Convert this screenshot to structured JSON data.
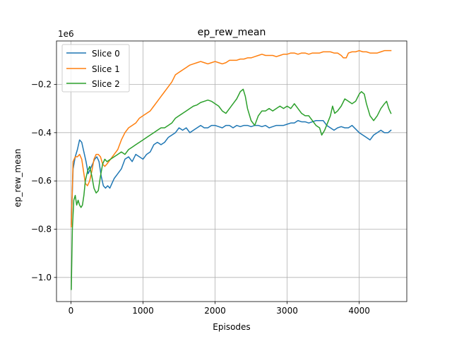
{
  "chart_data": {
    "type": "line",
    "title": "ep_rew_mean",
    "xlabel": "Episodes",
    "ylabel": "ep_rew_mean",
    "y_offset_label": "1e6",
    "xlim": [
      -200,
      4660
    ],
    "ylim": [
      -1.1,
      -0.02
    ],
    "x_ticks": [
      0,
      1000,
      2000,
      3000,
      4000
    ],
    "x_tick_labels": [
      "0",
      "1000",
      "2000",
      "3000",
      "4000"
    ],
    "y_ticks": [
      -1.0,
      -0.8,
      -0.6,
      -0.4,
      -0.2
    ],
    "y_tick_labels": [
      "−1.0",
      "−0.8",
      "−0.6",
      "−0.4",
      "−0.2"
    ],
    "grid": true,
    "legend_position": "upper-left",
    "series": [
      {
        "name": "Slice 0",
        "color": "#1f77b4",
        "points": [
          [
            5,
            -0.78
          ],
          [
            30,
            -0.55
          ],
          [
            60,
            -0.5
          ],
          [
            90,
            -0.47
          ],
          [
            120,
            -0.43
          ],
          [
            150,
            -0.44
          ],
          [
            180,
            -0.48
          ],
          [
            210,
            -0.52
          ],
          [
            240,
            -0.57
          ],
          [
            270,
            -0.55
          ],
          [
            300,
            -0.53
          ],
          [
            330,
            -0.51
          ],
          [
            360,
            -0.5
          ],
          [
            390,
            -0.52
          ],
          [
            420,
            -0.58
          ],
          [
            450,
            -0.62
          ],
          [
            480,
            -0.63
          ],
          [
            510,
            -0.62
          ],
          [
            540,
            -0.63
          ],
          [
            570,
            -0.61
          ],
          [
            600,
            -0.59
          ],
          [
            650,
            -0.57
          ],
          [
            700,
            -0.55
          ],
          [
            750,
            -0.51
          ],
          [
            800,
            -0.5
          ],
          [
            850,
            -0.52
          ],
          [
            900,
            -0.49
          ],
          [
            950,
            -0.5
          ],
          [
            1000,
            -0.51
          ],
          [
            1050,
            -0.49
          ],
          [
            1100,
            -0.48
          ],
          [
            1150,
            -0.45
          ],
          [
            1200,
            -0.44
          ],
          [
            1250,
            -0.45
          ],
          [
            1300,
            -0.44
          ],
          [
            1350,
            -0.42
          ],
          [
            1400,
            -0.41
          ],
          [
            1450,
            -0.4
          ],
          [
            1500,
            -0.38
          ],
          [
            1550,
            -0.39
          ],
          [
            1600,
            -0.38
          ],
          [
            1650,
            -0.4
          ],
          [
            1700,
            -0.39
          ],
          [
            1750,
            -0.38
          ],
          [
            1800,
            -0.37
          ],
          [
            1850,
            -0.38
          ],
          [
            1900,
            -0.38
          ],
          [
            1950,
            -0.37
          ],
          [
            2000,
            -0.37
          ],
          [
            2050,
            -0.375
          ],
          [
            2100,
            -0.38
          ],
          [
            2150,
            -0.37
          ],
          [
            2200,
            -0.37
          ],
          [
            2250,
            -0.38
          ],
          [
            2300,
            -0.37
          ],
          [
            2350,
            -0.375
          ],
          [
            2400,
            -0.37
          ],
          [
            2450,
            -0.37
          ],
          [
            2500,
            -0.375
          ],
          [
            2550,
            -0.37
          ],
          [
            2600,
            -0.37
          ],
          [
            2650,
            -0.375
          ],
          [
            2700,
            -0.37
          ],
          [
            2750,
            -0.38
          ],
          [
            2800,
            -0.375
          ],
          [
            2850,
            -0.37
          ],
          [
            2900,
            -0.37
          ],
          [
            2950,
            -0.37
          ],
          [
            3000,
            -0.365
          ],
          [
            3050,
            -0.36
          ],
          [
            3100,
            -0.36
          ],
          [
            3150,
            -0.35
          ],
          [
            3200,
            -0.355
          ],
          [
            3250,
            -0.355
          ],
          [
            3300,
            -0.36
          ],
          [
            3350,
            -0.355
          ],
          [
            3400,
            -0.35
          ],
          [
            3450,
            -0.35
          ],
          [
            3500,
            -0.35
          ],
          [
            3550,
            -0.37
          ],
          [
            3600,
            -0.38
          ],
          [
            3650,
            -0.39
          ],
          [
            3700,
            -0.38
          ],
          [
            3750,
            -0.375
          ],
          [
            3800,
            -0.38
          ],
          [
            3850,
            -0.38
          ],
          [
            3900,
            -0.37
          ],
          [
            3950,
            -0.385
          ],
          [
            4000,
            -0.4
          ],
          [
            4050,
            -0.41
          ],
          [
            4100,
            -0.42
          ],
          [
            4150,
            -0.43
          ],
          [
            4200,
            -0.41
          ],
          [
            4250,
            -0.4
          ],
          [
            4300,
            -0.39
          ],
          [
            4350,
            -0.4
          ],
          [
            4400,
            -0.4
          ],
          [
            4440,
            -0.39
          ]
        ]
      },
      {
        "name": "Slice 1",
        "color": "#ff7f0e",
        "points": [
          [
            5,
            -0.79
          ],
          [
            30,
            -0.52
          ],
          [
            60,
            -0.5
          ],
          [
            90,
            -0.5
          ],
          [
            120,
            -0.49
          ],
          [
            150,
            -0.51
          ],
          [
            180,
            -0.57
          ],
          [
            200,
            -0.61
          ],
          [
            230,
            -0.62
          ],
          [
            260,
            -0.6
          ],
          [
            290,
            -0.56
          ],
          [
            320,
            -0.51
          ],
          [
            350,
            -0.49
          ],
          [
            380,
            -0.49
          ],
          [
            410,
            -0.5
          ],
          [
            440,
            -0.53
          ],
          [
            470,
            -0.54
          ],
          [
            500,
            -0.53
          ],
          [
            550,
            -0.51
          ],
          [
            600,
            -0.49
          ],
          [
            650,
            -0.47
          ],
          [
            700,
            -0.43
          ],
          [
            750,
            -0.4
          ],
          [
            800,
            -0.38
          ],
          [
            850,
            -0.37
          ],
          [
            900,
            -0.36
          ],
          [
            950,
            -0.34
          ],
          [
            1000,
            -0.33
          ],
          [
            1050,
            -0.32
          ],
          [
            1100,
            -0.31
          ],
          [
            1150,
            -0.29
          ],
          [
            1200,
            -0.27
          ],
          [
            1250,
            -0.25
          ],
          [
            1300,
            -0.23
          ],
          [
            1350,
            -0.21
          ],
          [
            1400,
            -0.19
          ],
          [
            1450,
            -0.16
          ],
          [
            1500,
            -0.15
          ],
          [
            1550,
            -0.14
          ],
          [
            1600,
            -0.13
          ],
          [
            1650,
            -0.12
          ],
          [
            1700,
            -0.115
          ],
          [
            1750,
            -0.11
          ],
          [
            1800,
            -0.105
          ],
          [
            1850,
            -0.11
          ],
          [
            1900,
            -0.115
          ],
          [
            1950,
            -0.11
          ],
          [
            2000,
            -0.105
          ],
          [
            2050,
            -0.11
          ],
          [
            2100,
            -0.115
          ],
          [
            2150,
            -0.11
          ],
          [
            2200,
            -0.1
          ],
          [
            2250,
            -0.1
          ],
          [
            2300,
            -0.1
          ],
          [
            2350,
            -0.095
          ],
          [
            2400,
            -0.095
          ],
          [
            2450,
            -0.09
          ],
          [
            2500,
            -0.09
          ],
          [
            2550,
            -0.085
          ],
          [
            2600,
            -0.08
          ],
          [
            2650,
            -0.075
          ],
          [
            2700,
            -0.08
          ],
          [
            2750,
            -0.08
          ],
          [
            2800,
            -0.08
          ],
          [
            2850,
            -0.085
          ],
          [
            2900,
            -0.08
          ],
          [
            2950,
            -0.075
          ],
          [
            3000,
            -0.075
          ],
          [
            3050,
            -0.07
          ],
          [
            3100,
            -0.07
          ],
          [
            3150,
            -0.075
          ],
          [
            3200,
            -0.07
          ],
          [
            3250,
            -0.07
          ],
          [
            3300,
            -0.075
          ],
          [
            3350,
            -0.07
          ],
          [
            3400,
            -0.07
          ],
          [
            3450,
            -0.07
          ],
          [
            3500,
            -0.065
          ],
          [
            3550,
            -0.065
          ],
          [
            3600,
            -0.065
          ],
          [
            3650,
            -0.07
          ],
          [
            3700,
            -0.07
          ],
          [
            3750,
            -0.08
          ],
          [
            3780,
            -0.09
          ],
          [
            3820,
            -0.09
          ],
          [
            3850,
            -0.07
          ],
          [
            3900,
            -0.065
          ],
          [
            3950,
            -0.065
          ],
          [
            4000,
            -0.06
          ],
          [
            4050,
            -0.065
          ],
          [
            4100,
            -0.065
          ],
          [
            4150,
            -0.07
          ],
          [
            4200,
            -0.07
          ],
          [
            4250,
            -0.07
          ],
          [
            4300,
            -0.065
          ],
          [
            4350,
            -0.06
          ],
          [
            4400,
            -0.06
          ],
          [
            4440,
            -0.06
          ]
        ]
      },
      {
        "name": "Slice 2",
        "color": "#2ca02c",
        "points": [
          [
            5,
            -1.05
          ],
          [
            20,
            -0.8
          ],
          [
            40,
            -0.68
          ],
          [
            60,
            -0.66
          ],
          [
            80,
            -0.7
          ],
          [
            100,
            -0.68
          ],
          [
            120,
            -0.7
          ],
          [
            140,
            -0.71
          ],
          [
            160,
            -0.7
          ],
          [
            180,
            -0.66
          ],
          [
            200,
            -0.6
          ],
          [
            230,
            -0.56
          ],
          [
            260,
            -0.54
          ],
          [
            290,
            -0.58
          ],
          [
            320,
            -0.63
          ],
          [
            350,
            -0.65
          ],
          [
            380,
            -0.64
          ],
          [
            410,
            -0.58
          ],
          [
            440,
            -0.53
          ],
          [
            470,
            -0.51
          ],
          [
            500,
            -0.52
          ],
          [
            550,
            -0.51
          ],
          [
            600,
            -0.5
          ],
          [
            650,
            -0.49
          ],
          [
            700,
            -0.48
          ],
          [
            750,
            -0.49
          ],
          [
            800,
            -0.47
          ],
          [
            850,
            -0.46
          ],
          [
            900,
            -0.45
          ],
          [
            950,
            -0.44
          ],
          [
            1000,
            -0.43
          ],
          [
            1050,
            -0.42
          ],
          [
            1100,
            -0.41
          ],
          [
            1150,
            -0.4
          ],
          [
            1200,
            -0.39
          ],
          [
            1250,
            -0.38
          ],
          [
            1300,
            -0.38
          ],
          [
            1350,
            -0.37
          ],
          [
            1400,
            -0.36
          ],
          [
            1450,
            -0.34
          ],
          [
            1500,
            -0.33
          ],
          [
            1550,
            -0.32
          ],
          [
            1600,
            -0.31
          ],
          [
            1650,
            -0.3
          ],
          [
            1700,
            -0.29
          ],
          [
            1750,
            -0.285
          ],
          [
            1800,
            -0.275
          ],
          [
            1850,
            -0.27
          ],
          [
            1900,
            -0.265
          ],
          [
            1950,
            -0.27
          ],
          [
            2000,
            -0.28
          ],
          [
            2050,
            -0.29
          ],
          [
            2100,
            -0.31
          ],
          [
            2150,
            -0.32
          ],
          [
            2200,
            -0.3
          ],
          [
            2250,
            -0.28
          ],
          [
            2300,
            -0.26
          ],
          [
            2350,
            -0.23
          ],
          [
            2390,
            -0.22
          ],
          [
            2420,
            -0.25
          ],
          [
            2450,
            -0.3
          ],
          [
            2500,
            -0.35
          ],
          [
            2550,
            -0.37
          ],
          [
            2600,
            -0.33
          ],
          [
            2650,
            -0.31
          ],
          [
            2700,
            -0.31
          ],
          [
            2750,
            -0.3
          ],
          [
            2800,
            -0.31
          ],
          [
            2850,
            -0.3
          ],
          [
            2900,
            -0.29
          ],
          [
            2950,
            -0.3
          ],
          [
            3000,
            -0.29
          ],
          [
            3050,
            -0.3
          ],
          [
            3100,
            -0.28
          ],
          [
            3150,
            -0.3
          ],
          [
            3200,
            -0.32
          ],
          [
            3250,
            -0.33
          ],
          [
            3300,
            -0.33
          ],
          [
            3350,
            -0.35
          ],
          [
            3400,
            -0.37
          ],
          [
            3450,
            -0.38
          ],
          [
            3480,
            -0.41
          ],
          [
            3520,
            -0.39
          ],
          [
            3560,
            -0.36
          ],
          [
            3600,
            -0.33
          ],
          [
            3630,
            -0.29
          ],
          [
            3660,
            -0.32
          ],
          [
            3700,
            -0.31
          ],
          [
            3750,
            -0.29
          ],
          [
            3800,
            -0.26
          ],
          [
            3850,
            -0.27
          ],
          [
            3900,
            -0.28
          ],
          [
            3950,
            -0.27
          ],
          [
            4000,
            -0.24
          ],
          [
            4030,
            -0.23
          ],
          [
            4070,
            -0.24
          ],
          [
            4100,
            -0.28
          ],
          [
            4150,
            -0.33
          ],
          [
            4200,
            -0.35
          ],
          [
            4250,
            -0.33
          ],
          [
            4300,
            -0.3
          ],
          [
            4350,
            -0.28
          ],
          [
            4380,
            -0.27
          ],
          [
            4410,
            -0.3
          ],
          [
            4440,
            -0.32
          ]
        ]
      }
    ]
  }
}
